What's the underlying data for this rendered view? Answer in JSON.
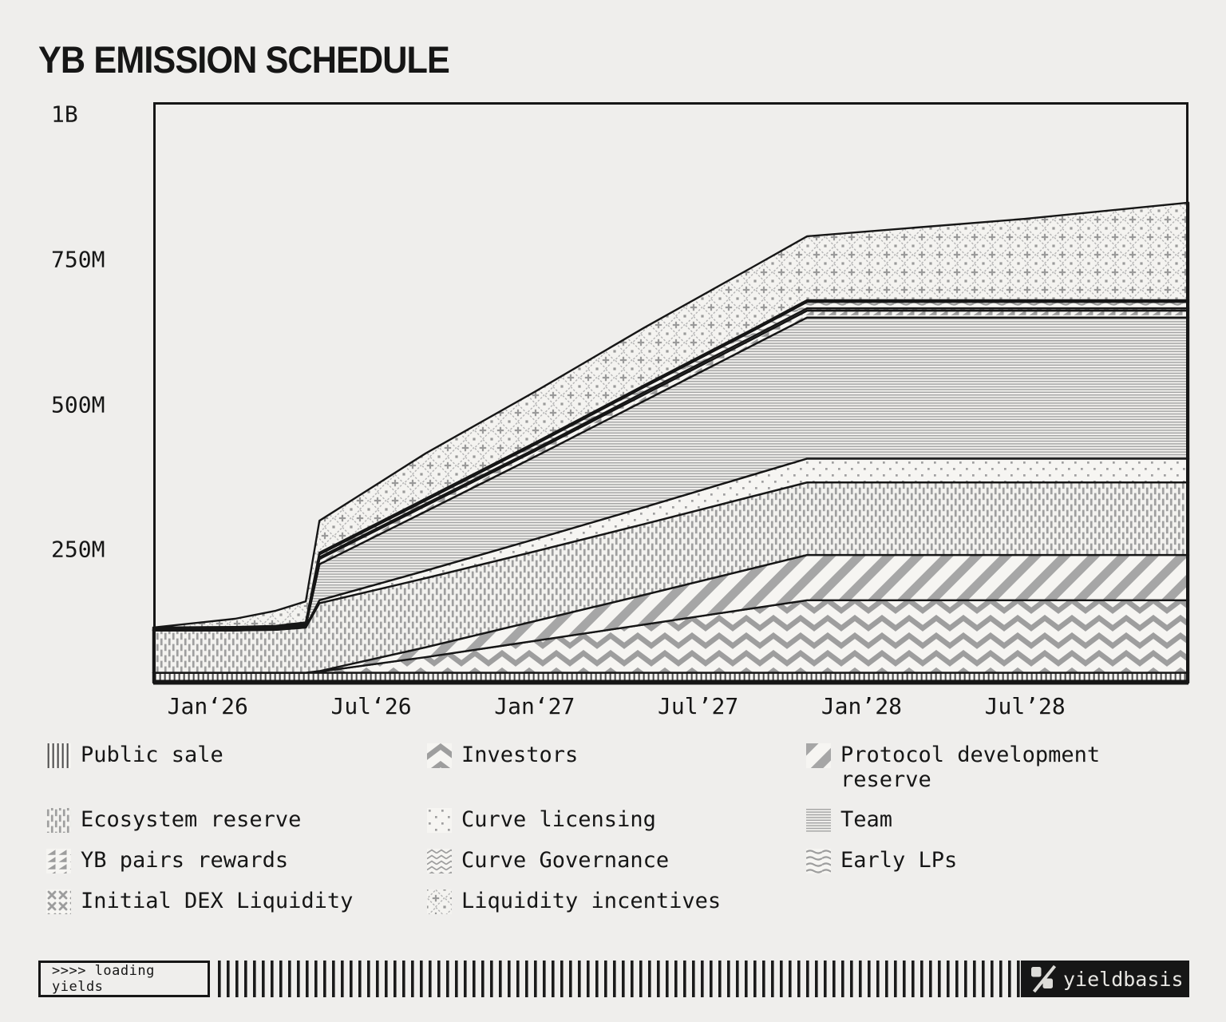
{
  "title": "YB EMISSION SCHEDULE",
  "chart_data": {
    "type": "area",
    "stacked": true,
    "title": "YB EMISSION SCHEDULE",
    "x_unit": "months since Nov 2025",
    "x_max": 38,
    "x": [
      0,
      3,
      4.5,
      5.6,
      6.1,
      10,
      14,
      18,
      22,
      24,
      28,
      32,
      38
    ],
    "x_ticks": [
      {
        "label": "Jan‘26",
        "t": 2
      },
      {
        "label": "Jul‘26",
        "t": 8
      },
      {
        "label": "Jan‘27",
        "t": 14
      },
      {
        "label": "Jul’27",
        "t": 20
      },
      {
        "label": "Jan’28",
        "t": 26
      },
      {
        "label": "Jul’28",
        "t": 32
      }
    ],
    "y_unit": "millions of YB tokens",
    "ylim": [
      0,
      1000
    ],
    "y_ticks": [
      {
        "label": "1B",
        "value": 1000
      },
      {
        "label": "750M",
        "value": 750
      },
      {
        "label": "500M",
        "value": 500
      },
      {
        "label": "250M",
        "value": 250
      }
    ],
    "grid": false,
    "legend_position": "bottom",
    "series": [
      {
        "name": "Public sale",
        "pattern": "vertical-lines",
        "values": [
          17,
          17,
          17,
          17,
          17,
          17,
          17,
          17,
          17,
          17,
          17,
          17,
          17
        ]
      },
      {
        "name": "Investors",
        "pattern": "chevron-bold",
        "values": [
          0,
          0,
          0,
          0,
          2,
          27,
          55,
          83,
          111,
          125,
          125,
          125,
          125
        ]
      },
      {
        "name": "Protocol development reserve",
        "pattern": "diagonal-stripes",
        "values": [
          0,
          0,
          0,
          0,
          1,
          17,
          34,
          51,
          69,
          78,
          78,
          78,
          78
        ]
      },
      {
        "name": "Ecosystem reserve",
        "pattern": "weave",
        "values": [
          73,
          73,
          74,
          78,
          117,
          119,
          120,
          122,
          124,
          125,
          125,
          125,
          125
        ]
      },
      {
        "name": "Curve licensing",
        "pattern": "dots",
        "values": [
          0,
          0,
          1,
          2,
          5,
          13,
          21,
          29,
          37,
          41,
          41,
          41,
          41
        ]
      },
      {
        "name": "Team",
        "pattern": "horizontal-lines",
        "values": [
          0,
          0,
          0,
          0,
          62,
          102,
          142,
          183,
          223,
          243,
          243,
          243,
          243
        ]
      },
      {
        "name": "YB pairs rewards",
        "pattern": "triangles",
        "values": [
          0,
          0,
          0,
          0,
          9,
          10,
          10,
          11,
          11,
          12,
          12,
          12,
          12
        ]
      },
      {
        "name": "Curve Governance",
        "pattern": "chevron-fine",
        "values": [
          1,
          1,
          1,
          1,
          3,
          3,
          3,
          4,
          4,
          4,
          4,
          4,
          4
        ]
      },
      {
        "name": "Early LPs",
        "pattern": "waves",
        "values": [
          1,
          2,
          2,
          3,
          5,
          6,
          8,
          9,
          10,
          11,
          11,
          11,
          11
        ]
      },
      {
        "name": "Initial DEX Liquidity",
        "pattern": "x-knot",
        "values": [
          3,
          3,
          3,
          3,
          3,
          3,
          3,
          3,
          3,
          3,
          3,
          3,
          3
        ]
      },
      {
        "name": "Liquidity incentives",
        "pattern": "ornate-diamonds",
        "values": [
          0,
          14,
          26,
          36,
          55,
          78,
          88,
          99,
          107,
          110,
          125,
          140,
          168
        ]
      }
    ]
  },
  "legend": {
    "items": [
      {
        "label": "Public sale",
        "pattern": "vertical-lines"
      },
      {
        "label": "Investors",
        "pattern": "chevron-bold"
      },
      {
        "label": "Protocol development reserve",
        "pattern": "diagonal-stripes"
      },
      {
        "label": "Ecosystem reserve",
        "pattern": "weave"
      },
      {
        "label": "Curve licensing",
        "pattern": "dots"
      },
      {
        "label": "Team",
        "pattern": "horizontal-lines"
      },
      {
        "label": "YB pairs rewards",
        "pattern": "triangles"
      },
      {
        "label": "Curve Governance",
        "pattern": "chevron-fine"
      },
      {
        "label": "Early LPs",
        "pattern": "waves"
      },
      {
        "label": "Initial DEX Liquidity",
        "pattern": "x-knot"
      },
      {
        "label": "Liquidity incentives",
        "pattern": "ornate-diamonds"
      }
    ]
  },
  "footer": {
    "loading_text": ">>>> loading yields",
    "brand": "yieldbasis"
  },
  "colors": {
    "background": "#efeeec",
    "ink": "#161616",
    "pattern_gray": "#9d9d9d",
    "band_background": "#f6f5f2"
  }
}
